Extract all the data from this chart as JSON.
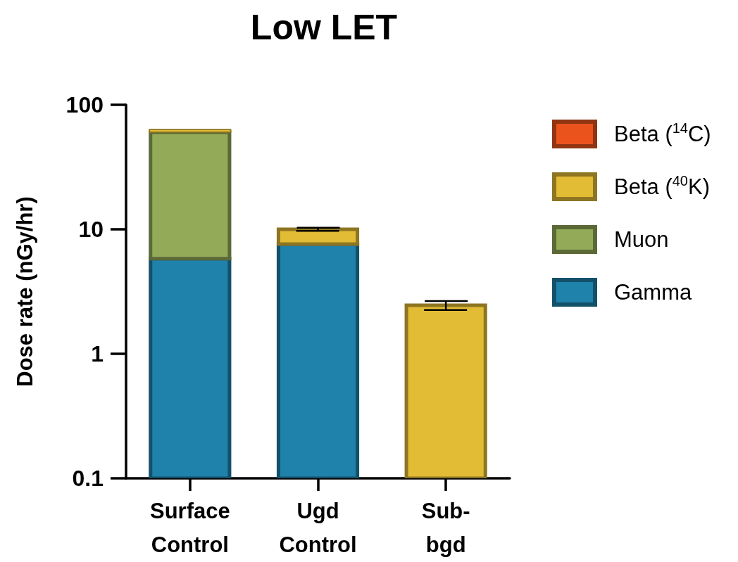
{
  "chart_data": {
    "type": "bar",
    "title": "Low LET",
    "ylabel": "Dose rate (nGy/hr)",
    "categories": [
      "Surface Control",
      "Ugd Control",
      "Sub-bgd"
    ],
    "series": [
      {
        "name": "Gamma",
        "color": "#1f82ab",
        "values": [
          5.8,
          7.6,
          null
        ]
      },
      {
        "name": "Muon",
        "color": "#93aa59",
        "values": [
          54.5,
          null,
          null
        ]
      },
      {
        "name": "Beta ($^{40}$K)",
        "color": "#e3bc35",
        "values": [
          3.0,
          2.4,
          2.45
        ],
        "errors": [
          null,
          0.3,
          0.2
        ]
      },
      {
        "name": "Beta ($^{14}$C)",
        "color": "#ea541c",
        "values": [
          null,
          null,
          null
        ]
      }
    ],
    "stacked": true,
    "log": true,
    "ylim": [
      0.1,
      100
    ],
    "yticks": [
      0.1,
      1,
      10,
      100
    ],
    "legend": "top right"
  }
}
